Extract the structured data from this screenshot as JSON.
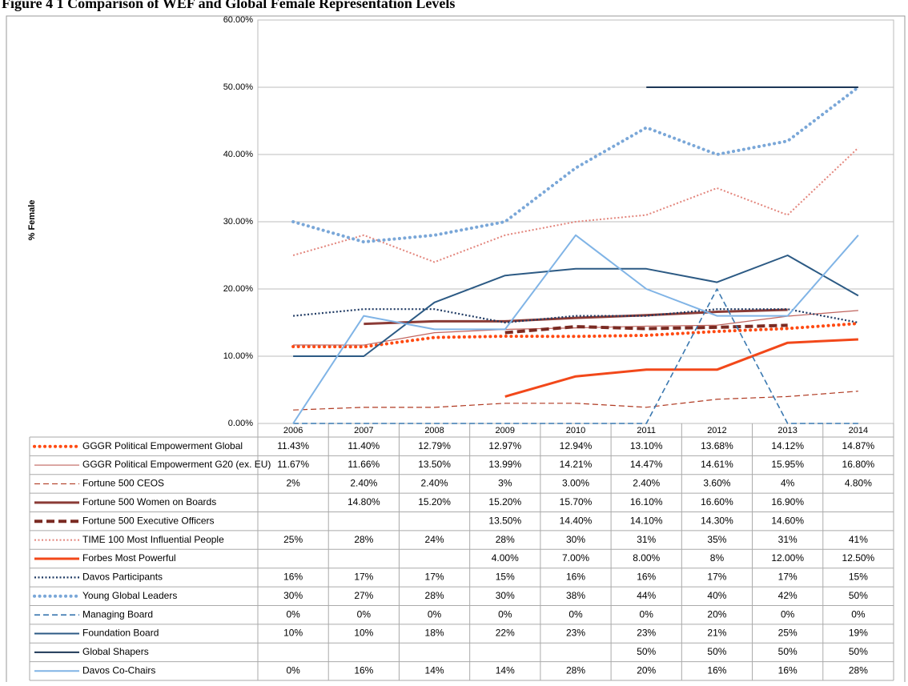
{
  "chart_data": {
    "type": "line",
    "title": "Figure 4 1 Comparison of WEF and Global Female Representation Levels",
    "y_label": "% Female",
    "categories": [
      "2006",
      "2007",
      "2008",
      "2009",
      "2010",
      "2011",
      "2012",
      "2013",
      "2014"
    ],
    "ylim": [
      0,
      60
    ],
    "yticks": [
      {
        "value": 0,
        "label": "0.00%"
      },
      {
        "value": 10,
        "label": "10.00%"
      },
      {
        "value": 20,
        "label": "20.00%"
      },
      {
        "value": 30,
        "label": "30.00%"
      },
      {
        "value": 40,
        "label": "40.00%"
      },
      {
        "value": 50,
        "label": "50.00%"
      },
      {
        "value": 60,
        "label": "60.00%"
      }
    ],
    "grid": true,
    "series": [
      {
        "name": "GGGR Political Empowerment Global",
        "color": "#ff4a12",
        "style": "dotted",
        "width": 4,
        "values": [
          11.43,
          11.4,
          12.79,
          12.97,
          12.94,
          13.1,
          13.68,
          14.12,
          14.87
        ],
        "value_labels": [
          "11.43%",
          "11.40%",
          "12.79%",
          "12.97%",
          "12.94%",
          "13.10%",
          "13.68%",
          "14.12%",
          "14.87%"
        ]
      },
      {
        "name": "GGGR Political Empowerment G20 (ex. EU)",
        "color": "#c0645e",
        "style": "solid",
        "width": 1.2,
        "values": [
          11.67,
          11.66,
          13.5,
          13.99,
          14.21,
          14.47,
          14.61,
          15.95,
          16.8
        ],
        "value_labels": [
          "11.67%",
          "11.66%",
          "13.50%",
          "13.99%",
          "14.21%",
          "14.47%",
          "14.61%",
          "15.95%",
          "16.80%"
        ]
      },
      {
        "name": "Fortune 500 CEOS",
        "color": "#b03a22",
        "style": "dashed",
        "width": 1.2,
        "values": [
          2,
          2.4,
          2.4,
          3,
          3.0,
          2.4,
          3.6,
          4,
          4.8
        ],
        "value_labels": [
          "2%",
          "2.40%",
          "2.40%",
          "3%",
          "3.00%",
          "2.40%",
          "3.60%",
          "4%",
          "4.80%"
        ]
      },
      {
        "name": "Fortune 500 Women on Boards",
        "color": "#8b3b36",
        "style": "solid",
        "width": 3,
        "values": [
          null,
          14.8,
          15.2,
          15.2,
          15.7,
          16.1,
          16.6,
          16.9,
          null
        ],
        "value_labels": [
          null,
          "14.80%",
          "15.20%",
          "15.20%",
          "15.70%",
          "16.10%",
          "16.60%",
          "16.90%",
          null
        ]
      },
      {
        "name": "Fortune 500 Executive Officers",
        "color": "#7a2a22",
        "style": "dashed",
        "width": 4,
        "values": [
          null,
          null,
          null,
          13.5,
          14.4,
          14.1,
          14.3,
          14.6,
          null
        ],
        "value_labels": [
          null,
          null,
          null,
          "13.50%",
          "14.40%",
          "14.10%",
          "14.30%",
          "14.60%",
          null
        ]
      },
      {
        "name": "TIME 100 Most Influential People",
        "color": "#e3857c",
        "style": "dotted",
        "width": 2,
        "values": [
          25,
          28,
          24,
          28,
          30,
          31,
          35,
          31,
          41
        ],
        "value_labels": [
          "25%",
          "28%",
          "24%",
          "28%",
          "30%",
          "31%",
          "35%",
          "31%",
          "41%"
        ]
      },
      {
        "name": "Forbes Most Powerful",
        "color": "#f2481a",
        "style": "solid",
        "width": 3,
        "values": [
          null,
          null,
          null,
          4.0,
          7.0,
          8.0,
          8,
          12.0,
          12.5
        ],
        "value_labels": [
          null,
          null,
          null,
          "4.00%",
          "7.00%",
          "8.00%",
          "8%",
          "12.00%",
          "12.50%"
        ]
      },
      {
        "name": "Davos Participants",
        "color": "#1f3a63",
        "style": "dotted",
        "width": 2.2,
        "values": [
          16,
          17,
          17,
          15,
          16,
          16,
          17,
          17,
          15
        ],
        "value_labels": [
          "16%",
          "17%",
          "17%",
          "15%",
          "16%",
          "16%",
          "17%",
          "17%",
          "15%"
        ]
      },
      {
        "name": "Young Global Leaders",
        "color": "#7aa7d8",
        "style": "dotted",
        "width": 4,
        "values": [
          30,
          27,
          28,
          30,
          38,
          44,
          40,
          42,
          50
        ],
        "value_labels": [
          "30%",
          "27%",
          "28%",
          "30%",
          "38%",
          "44%",
          "40%",
          "42%",
          "50%"
        ]
      },
      {
        "name": "Managing Board",
        "color": "#3a78b0",
        "style": "dashed",
        "width": 1.6,
        "values": [
          0,
          0,
          0,
          0,
          0,
          0,
          20,
          0,
          0
        ],
        "value_labels": [
          "0%",
          "0%",
          "0%",
          "0%",
          "0%",
          "0%",
          "20%",
          "0%",
          "0%"
        ]
      },
      {
        "name": "Foundation Board",
        "color": "#2c5a84",
        "style": "solid",
        "width": 2,
        "values": [
          10,
          10,
          18,
          22,
          23,
          23,
          21,
          25,
          19
        ],
        "value_labels": [
          "10%",
          "10%",
          "18%",
          "22%",
          "23%",
          "23%",
          "21%",
          "25%",
          "19%"
        ]
      },
      {
        "name": "Global Shapers",
        "color": "#1d3756",
        "style": "solid",
        "width": 2,
        "values": [
          null,
          null,
          null,
          null,
          null,
          50,
          50,
          50,
          50
        ],
        "value_labels": [
          null,
          null,
          null,
          null,
          null,
          "50%",
          "50%",
          "50%",
          "50%"
        ]
      },
      {
        "name": "Davos Co-Chairs",
        "color": "#80b4e6",
        "style": "solid",
        "width": 2,
        "values": [
          0,
          16,
          14,
          14,
          28,
          20,
          16,
          16,
          28
        ],
        "value_labels": [
          "0%",
          "16%",
          "14%",
          "14%",
          "28%",
          "20%",
          "16%",
          "16%",
          "28%"
        ]
      }
    ]
  }
}
